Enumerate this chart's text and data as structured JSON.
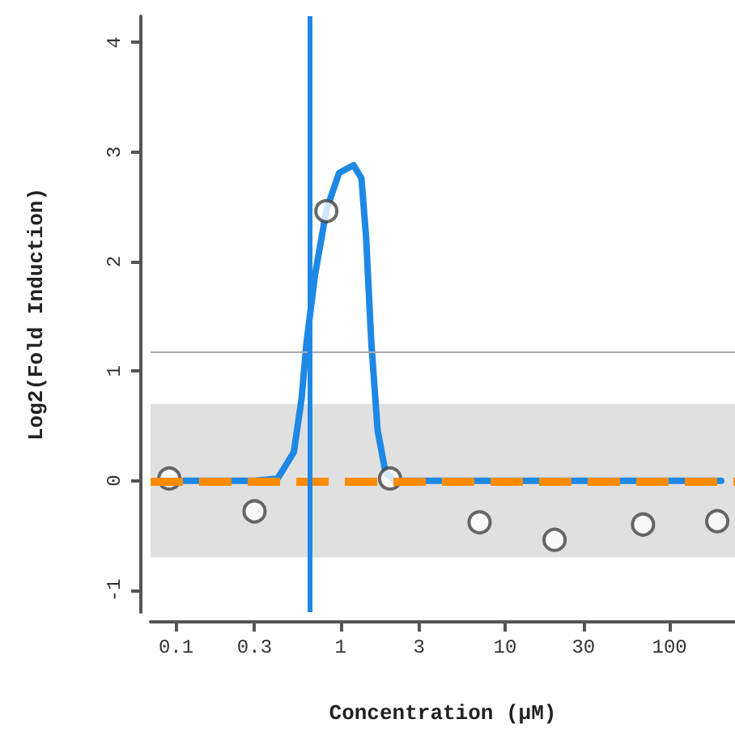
{
  "chart_data": {
    "type": "scatter",
    "xlabel": "Concentration (μM)",
    "ylabel": "Log2(Fold Induction)",
    "log": "x",
    "xlim": [
      0.07,
      250
    ],
    "ylim": [
      -1.2,
      4.24
    ],
    "xticks": [
      0.1,
      0.3,
      1,
      3,
      10,
      30,
      100
    ],
    "yticks": [
      -1,
      0,
      1,
      2,
      3,
      4
    ],
    "x": [
      0.091,
      0.3,
      0.82,
      2.0,
      7.0,
      20,
      69,
      195
    ],
    "series": [
      {
        "type": "line",
        "color": "#1e88e5",
        "marker": "none",
        "x": [
          0.09,
          0.3,
          0.415,
          0.52,
          0.58,
          0.62,
          0.7,
          0.82,
          0.98,
          1.2,
          1.34,
          1.43,
          1.54,
          1.68,
          1.88,
          2.15,
          10,
          206
        ],
        "values": [
          0,
          0,
          0.02,
          0.26,
          0.75,
          1.25,
          1.88,
          2.47,
          2.81,
          2.88,
          2.76,
          2.22,
          1.25,
          0.46,
          0.07,
          0,
          0,
          0
        ]
      },
      {
        "color": "#444444",
        "marker": "circle",
        "values": [
          0.02,
          -0.28,
          2.46,
          0.02,
          -0.38,
          -0.54,
          -0.4,
          -0.37
        ]
      }
    ],
    "ref_lines": [
      {
        "axis": "y",
        "value": 0,
        "color": "#ff8c00",
        "line_style": "dashed"
      },
      {
        "axis": "y",
        "value": 1.17,
        "color": "#aaaaaa",
        "line_style": "solid"
      },
      {
        "axis": "x",
        "value": 0.65,
        "color": "#1e88e5",
        "line_style": "solid"
      }
    ],
    "bands": [
      {
        "axis": "y",
        "from": -0.7,
        "to": 0.7,
        "color": "#bbbbbb"
      }
    ],
    "grid": false
  }
}
